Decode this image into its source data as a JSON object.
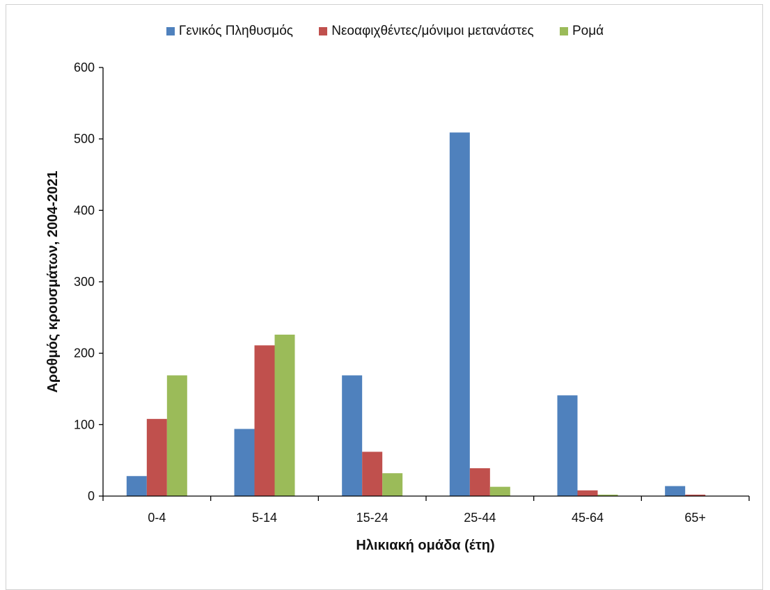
{
  "chart_data": {
    "type": "bar",
    "categories": [
      "0-4",
      "5-14",
      "15-24",
      "25-44",
      "45-64",
      "65+"
    ],
    "series": [
      {
        "name": "Γενικός Πληθυσμός",
        "color": "#4f81bd",
        "values": [
          28,
          94,
          169,
          509,
          141,
          14
        ]
      },
      {
        "name": "Νεοαφιχθέντες/μόνιμοι μετανάστες",
        "color": "#c0504d",
        "values": [
          108,
          211,
          62,
          39,
          8,
          2
        ]
      },
      {
        "name": "Ρομά",
        "color": "#9bbb59",
        "values": [
          169,
          226,
          32,
          13,
          2,
          0
        ]
      }
    ],
    "title": "",
    "xlabel": "Ηλικιακή ομάδα (έτη)",
    "ylabel": "Αροθμός κρουσμάτων, 2004-2021",
    "ylim": [
      0,
      600
    ],
    "yticks": [
      0,
      100,
      200,
      300,
      400,
      500,
      600
    ],
    "grid": false,
    "legend_position": "top"
  }
}
